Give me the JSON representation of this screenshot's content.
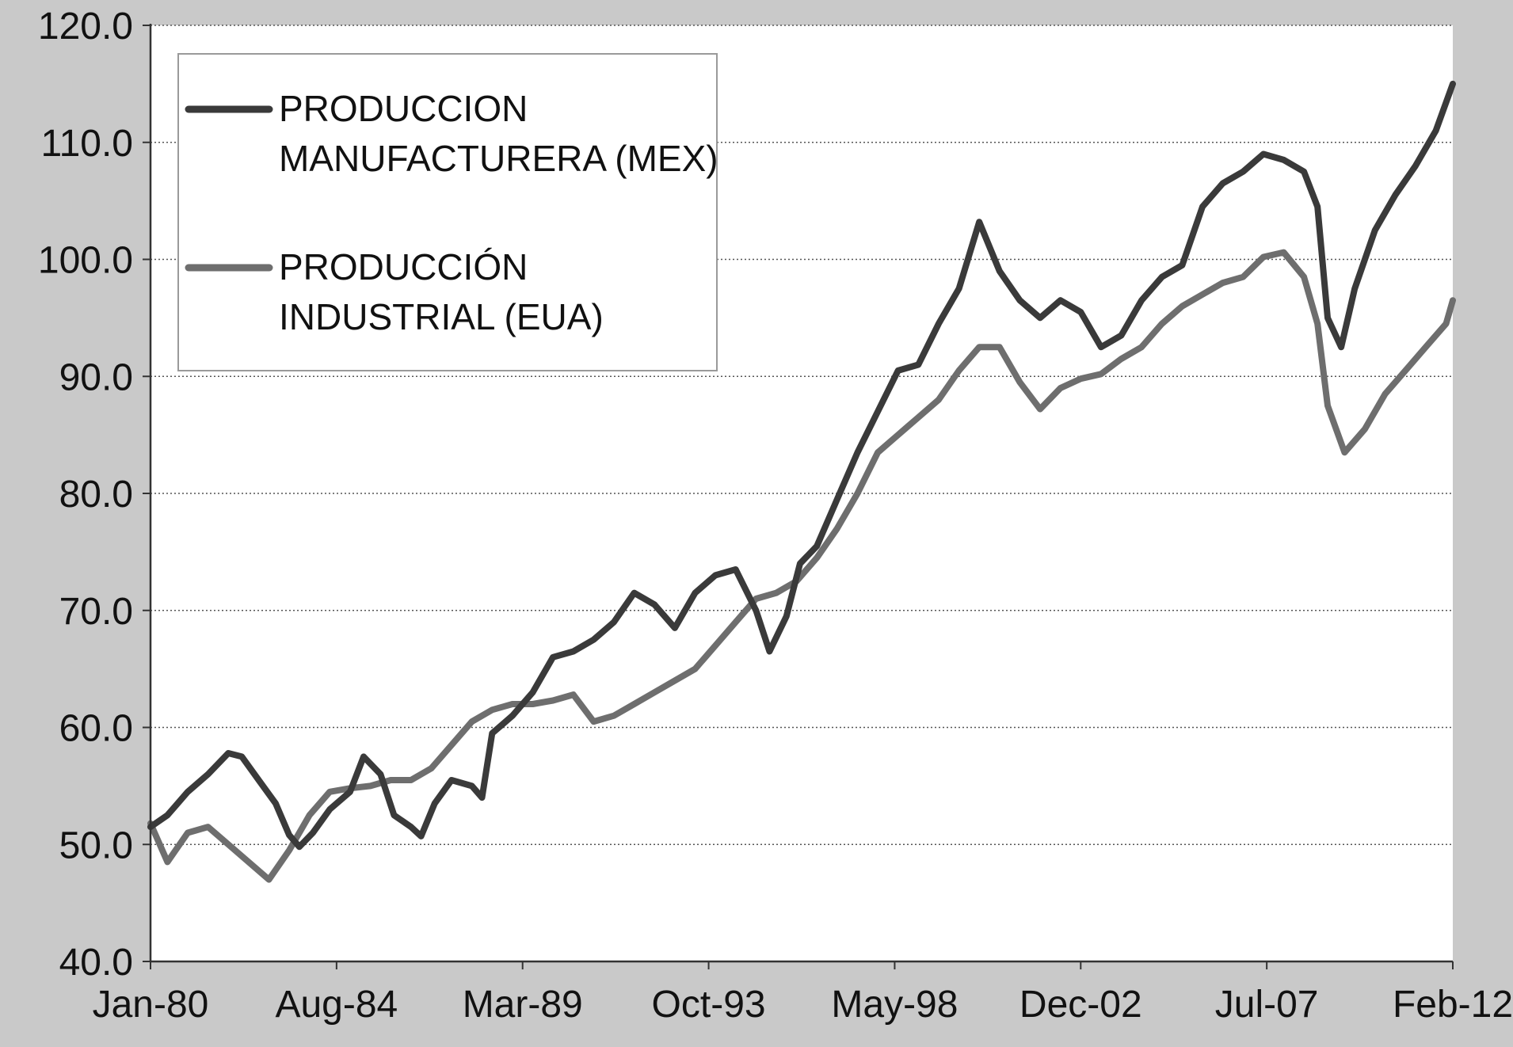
{
  "chart_data": {
    "type": "line",
    "title": "",
    "xlabel": "",
    "ylabel": "",
    "ylim": [
      40.0,
      120.0
    ],
    "yticks": [
      "40.0",
      "50.0",
      "60.0",
      "70.0",
      "80.0",
      "90.0",
      "100.0",
      "110.0",
      "120.0"
    ],
    "xticks": [
      "Jan-80",
      "Aug-84",
      "Mar-89",
      "Oct-93",
      "May-98",
      "Dec-02",
      "Jul-07",
      "Feb-12"
    ],
    "xlim": [
      "1980-01",
      "2012-02"
    ],
    "grid": "horizontal dotted",
    "legend_position": "top-left",
    "series": [
      {
        "name": "PRODUCCION MANUFACTURERA (MEX)",
        "legend_lines": [
          "PRODUCCION",
          "MANUFACTURERA (MEX)"
        ],
        "color": "#3a3a3a",
        "points": [
          [
            "1980-01",
            51.5
          ],
          [
            "1980-06",
            52.5
          ],
          [
            "1980-12",
            54.5
          ],
          [
            "1981-06",
            56.0
          ],
          [
            "1981-12",
            57.8
          ],
          [
            "1982-04",
            57.5
          ],
          [
            "1982-09",
            55.5
          ],
          [
            "1983-02",
            53.5
          ],
          [
            "1983-06",
            50.8
          ],
          [
            "1983-09",
            49.8
          ],
          [
            "1984-01",
            51.0
          ],
          [
            "1984-06",
            53.0
          ],
          [
            "1984-12",
            54.5
          ],
          [
            "1985-04",
            57.5
          ],
          [
            "1985-09",
            56.0
          ],
          [
            "1986-01",
            52.5
          ],
          [
            "1986-06",
            51.5
          ],
          [
            "1986-09",
            50.7
          ],
          [
            "1987-01",
            53.5
          ],
          [
            "1987-06",
            55.5
          ],
          [
            "1987-12",
            55.0
          ],
          [
            "1988-03",
            54.0
          ],
          [
            "1988-06",
            59.5
          ],
          [
            "1988-12",
            61.0
          ],
          [
            "1989-06",
            63.0
          ],
          [
            "1989-12",
            66.0
          ],
          [
            "1990-06",
            66.5
          ],
          [
            "1990-12",
            67.5
          ],
          [
            "1991-06",
            69.0
          ],
          [
            "1991-12",
            71.5
          ],
          [
            "1992-06",
            70.5
          ],
          [
            "1992-12",
            68.5
          ],
          [
            "1993-06",
            71.5
          ],
          [
            "1993-12",
            73.0
          ],
          [
            "1994-06",
            73.5
          ],
          [
            "1994-12",
            70.0
          ],
          [
            "1995-04",
            66.5
          ],
          [
            "1995-09",
            69.5
          ],
          [
            "1996-01",
            74.0
          ],
          [
            "1996-06",
            75.5
          ],
          [
            "1996-12",
            79.5
          ],
          [
            "1997-06",
            83.5
          ],
          [
            "1997-12",
            87.0
          ],
          [
            "1998-06",
            90.5
          ],
          [
            "1998-12",
            91.0
          ],
          [
            "1999-06",
            94.5
          ],
          [
            "1999-12",
            97.5
          ],
          [
            "2000-06",
            103.2
          ],
          [
            "2000-12",
            99.0
          ],
          [
            "2001-06",
            96.5
          ],
          [
            "2001-12",
            95.0
          ],
          [
            "2002-06",
            96.5
          ],
          [
            "2002-12",
            95.5
          ],
          [
            "2003-06",
            92.5
          ],
          [
            "2003-12",
            93.5
          ],
          [
            "2004-06",
            96.5
          ],
          [
            "2004-12",
            98.5
          ],
          [
            "2005-06",
            99.5
          ],
          [
            "2005-12",
            104.5
          ],
          [
            "2006-06",
            106.5
          ],
          [
            "2006-12",
            107.5
          ],
          [
            "2007-06",
            109.0
          ],
          [
            "2007-12",
            108.5
          ],
          [
            "2008-06",
            107.5
          ],
          [
            "2008-10",
            104.5
          ],
          [
            "2009-01",
            95.0
          ],
          [
            "2009-05",
            92.5
          ],
          [
            "2009-09",
            97.5
          ],
          [
            "2010-03",
            102.5
          ],
          [
            "2010-09",
            105.5
          ],
          [
            "2011-03",
            108.0
          ],
          [
            "2011-09",
            111.0
          ],
          [
            "2012-02",
            115.0
          ]
        ]
      },
      {
        "name": "PRODUCCIÓN INDUSTRIAL (EUA)",
        "legend_lines": [
          "PRODUCCIÓN",
          "INDUSTRIAL (EUA)"
        ],
        "color": "#6e6e6e",
        "points": [
          [
            "1980-01",
            51.8
          ],
          [
            "1980-06",
            48.5
          ],
          [
            "1980-12",
            51.0
          ],
          [
            "1981-06",
            51.5
          ],
          [
            "1981-10",
            50.5
          ],
          [
            "1982-06",
            48.5
          ],
          [
            "1982-12",
            47.0
          ],
          [
            "1983-06",
            49.5
          ],
          [
            "1983-12",
            52.5
          ],
          [
            "1984-06",
            54.5
          ],
          [
            "1984-12",
            54.8
          ],
          [
            "1985-06",
            55.0
          ],
          [
            "1985-12",
            55.5
          ],
          [
            "1986-06",
            55.5
          ],
          [
            "1986-12",
            56.5
          ],
          [
            "1987-06",
            58.5
          ],
          [
            "1987-12",
            60.5
          ],
          [
            "1988-06",
            61.5
          ],
          [
            "1988-12",
            62.0
          ],
          [
            "1989-06",
            62.0
          ],
          [
            "1989-12",
            62.3
          ],
          [
            "1990-06",
            62.8
          ],
          [
            "1990-12",
            60.5
          ],
          [
            "1991-06",
            61.0
          ],
          [
            "1991-12",
            62.0
          ],
          [
            "1992-06",
            63.0
          ],
          [
            "1992-12",
            64.0
          ],
          [
            "1993-06",
            65.0
          ],
          [
            "1993-12",
            67.0
          ],
          [
            "1994-06",
            69.0
          ],
          [
            "1994-12",
            71.0
          ],
          [
            "1995-06",
            71.5
          ],
          [
            "1995-12",
            72.5
          ],
          [
            "1996-06",
            74.5
          ],
          [
            "1996-12",
            77.0
          ],
          [
            "1997-06",
            80.0
          ],
          [
            "1997-12",
            83.5
          ],
          [
            "1998-06",
            85.0
          ],
          [
            "1998-12",
            86.5
          ],
          [
            "1999-06",
            88.0
          ],
          [
            "1999-12",
            90.5
          ],
          [
            "2000-06",
            92.5
          ],
          [
            "2000-12",
            92.5
          ],
          [
            "2001-06",
            89.5
          ],
          [
            "2001-12",
            87.2
          ],
          [
            "2002-06",
            89.0
          ],
          [
            "2002-12",
            89.8
          ],
          [
            "2003-06",
            90.2
          ],
          [
            "2003-12",
            91.5
          ],
          [
            "2004-06",
            92.5
          ],
          [
            "2004-12",
            94.5
          ],
          [
            "2005-06",
            96.0
          ],
          [
            "2005-12",
            97.0
          ],
          [
            "2006-06",
            98.0
          ],
          [
            "2006-12",
            98.5
          ],
          [
            "2007-06",
            100.2
          ],
          [
            "2007-12",
            100.6
          ],
          [
            "2008-06",
            98.5
          ],
          [
            "2008-10",
            94.5
          ],
          [
            "2009-01",
            87.5
          ],
          [
            "2009-06",
            83.5
          ],
          [
            "2009-12",
            85.5
          ],
          [
            "2010-06",
            88.5
          ],
          [
            "2010-12",
            90.5
          ],
          [
            "2011-06",
            92.5
          ],
          [
            "2011-12",
            94.5
          ],
          [
            "2012-02",
            96.5
          ]
        ]
      }
    ]
  }
}
